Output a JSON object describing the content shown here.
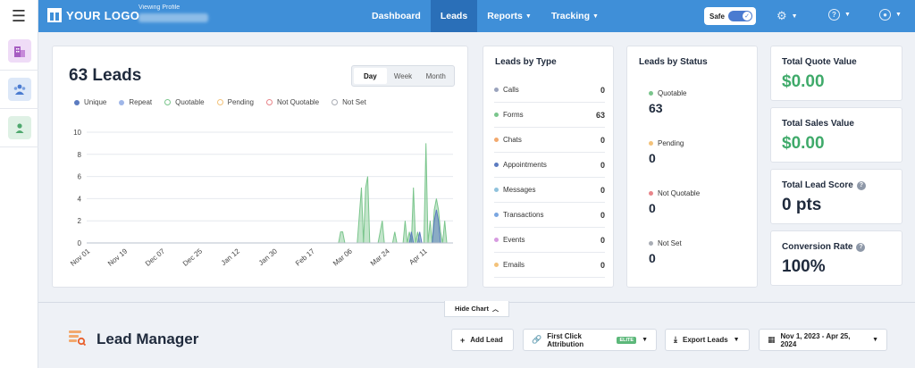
{
  "topbar": {
    "logo_text": "YOUR LOGO",
    "viewing_label": "Viewing Profile",
    "nav": [
      {
        "label": "Dashboard",
        "active": false,
        "dropdown": false
      },
      {
        "label": "Leads",
        "active": true,
        "dropdown": false
      },
      {
        "label": "Reports",
        "active": false,
        "dropdown": true
      },
      {
        "label": "Tracking",
        "active": false,
        "dropdown": true
      }
    ],
    "safe_label": "Safe",
    "icons": [
      "gear-icon",
      "help-icon",
      "user-icon"
    ]
  },
  "chart_card": {
    "title": "63 Leads",
    "ranges": [
      "Day",
      "Week",
      "Month"
    ],
    "selected_range": "Day",
    "legend": [
      {
        "label": "Unique",
        "color": "#5b7bc0",
        "style": "dot"
      },
      {
        "label": "Repeat",
        "color": "#9fb6e8",
        "style": "dot"
      },
      {
        "label": "Quotable",
        "color": "#7ac58c",
        "style": "ring"
      },
      {
        "label": "Pending",
        "color": "#f3c27a",
        "style": "ring"
      },
      {
        "label": "Not Quotable",
        "color": "#e8858a",
        "style": "ring"
      },
      {
        "label": "Not Set",
        "color": "#a9adb5",
        "style": "ring"
      }
    ]
  },
  "chart_data": {
    "type": "area",
    "x_ticks": [
      "Nov 01",
      "Nov 19",
      "Dec 07",
      "Dec 25",
      "Jan 12",
      "Jan 30",
      "Feb 17",
      "Mar 06",
      "Mar 24",
      "Apr 11"
    ],
    "y_ticks": [
      "0",
      "2",
      "4",
      "6",
      "8",
      "10"
    ],
    "ylim": [
      0,
      10
    ],
    "grid": true,
    "series": [
      {
        "name": "Quotable",
        "color": "#7ac58c",
        "points": [
          [
            "Mar 01",
            0
          ],
          [
            "Mar 02",
            1
          ],
          [
            "Mar 03",
            1
          ],
          [
            "Mar 04",
            0
          ],
          [
            "Mar 10",
            0
          ],
          [
            "Mar 12",
            5
          ],
          [
            "Mar 13",
            0
          ],
          [
            "Mar 14",
            5
          ],
          [
            "Mar 15",
            6
          ],
          [
            "Mar 16",
            0
          ],
          [
            "Mar 20",
            0
          ],
          [
            "Mar 22",
            2
          ],
          [
            "Mar 23",
            0
          ],
          [
            "Mar 27",
            0
          ],
          [
            "Mar 28",
            1
          ],
          [
            "Mar 29",
            0
          ],
          [
            "Apr 01",
            0
          ],
          [
            "Apr 02",
            2
          ],
          [
            "Apr 03",
            0
          ],
          [
            "Apr 04",
            1
          ],
          [
            "Apr 05",
            0
          ],
          [
            "Apr 06",
            5
          ],
          [
            "Apr 07",
            0
          ],
          [
            "Apr 08",
            1
          ],
          [
            "Apr 09",
            0
          ],
          [
            "Apr 11",
            0
          ],
          [
            "Apr 12",
            9
          ],
          [
            "Apr 13",
            0
          ],
          [
            "Apr 14",
            2
          ],
          [
            "Apr 15",
            0
          ],
          [
            "Apr 16",
            3
          ],
          [
            "Apr 17",
            4
          ],
          [
            "Apr 18",
            3
          ],
          [
            "Apr 19",
            1
          ],
          [
            "Apr 20",
            0
          ],
          [
            "Apr 21",
            2
          ],
          [
            "Apr 22",
            0
          ]
        ]
      },
      {
        "name": "Unique",
        "color": "#5b7bc0",
        "points": [
          [
            "Apr 04",
            0
          ],
          [
            "Apr 05",
            1
          ],
          [
            "Apr 06",
            0
          ],
          [
            "Apr 08",
            0
          ],
          [
            "Apr 09",
            1
          ],
          [
            "Apr 10",
            0
          ],
          [
            "Apr 15",
            0
          ],
          [
            "Apr 16",
            2
          ],
          [
            "Apr 17",
            3
          ],
          [
            "Apr 18",
            2
          ],
          [
            "Apr 19",
            0
          ]
        ]
      }
    ]
  },
  "leads_by_type": {
    "title": "Leads by Type",
    "rows": [
      {
        "label": "Calls",
        "value": "0",
        "color": "#9aa3bd"
      },
      {
        "label": "Forms",
        "value": "63",
        "color": "#7ac58c"
      },
      {
        "label": "Chats",
        "value": "0",
        "color": "#f2a96e"
      },
      {
        "label": "Appointments",
        "value": "0",
        "color": "#5b7bc0"
      },
      {
        "label": "Messages",
        "value": "0",
        "color": "#8fc2dc"
      },
      {
        "label": "Transactions",
        "value": "0",
        "color": "#7aa6e0"
      },
      {
        "label": "Events",
        "value": "0",
        "color": "#d79be0"
      },
      {
        "label": "Emails",
        "value": "0",
        "color": "#f3c27a"
      }
    ]
  },
  "leads_by_status": {
    "title": "Leads by Status",
    "rows": [
      {
        "label": "Quotable",
        "value": "63",
        "color": "#7ac58c"
      },
      {
        "label": "Pending",
        "value": "0",
        "color": "#f3c27a"
      },
      {
        "label": "Not Quotable",
        "value": "0",
        "color": "#e8858a"
      },
      {
        "label": "Not Set",
        "value": "0",
        "color": "#a9adb5"
      }
    ]
  },
  "kpis": [
    {
      "label": "Total Quote Value",
      "value": "$0.00",
      "green": true,
      "help": false
    },
    {
      "label": "Total Sales Value",
      "value": "$0.00",
      "green": true,
      "help": false
    },
    {
      "label": "Total Lead Score",
      "value": "0 pts",
      "green": false,
      "help": true
    },
    {
      "label": "Conversion Rate",
      "value": "100%",
      "green": false,
      "help": true
    }
  ],
  "bottom": {
    "hide_chart_label": "Hide Chart",
    "lead_manager_title": "Lead Manager",
    "add_lead_label": "Add Lead",
    "attribution_label": "First Click Attribution",
    "elite_badge": "ELITE",
    "export_label": "Export Leads",
    "date_range_label": "Nov 1, 2023 - Apr 25, 2024"
  }
}
